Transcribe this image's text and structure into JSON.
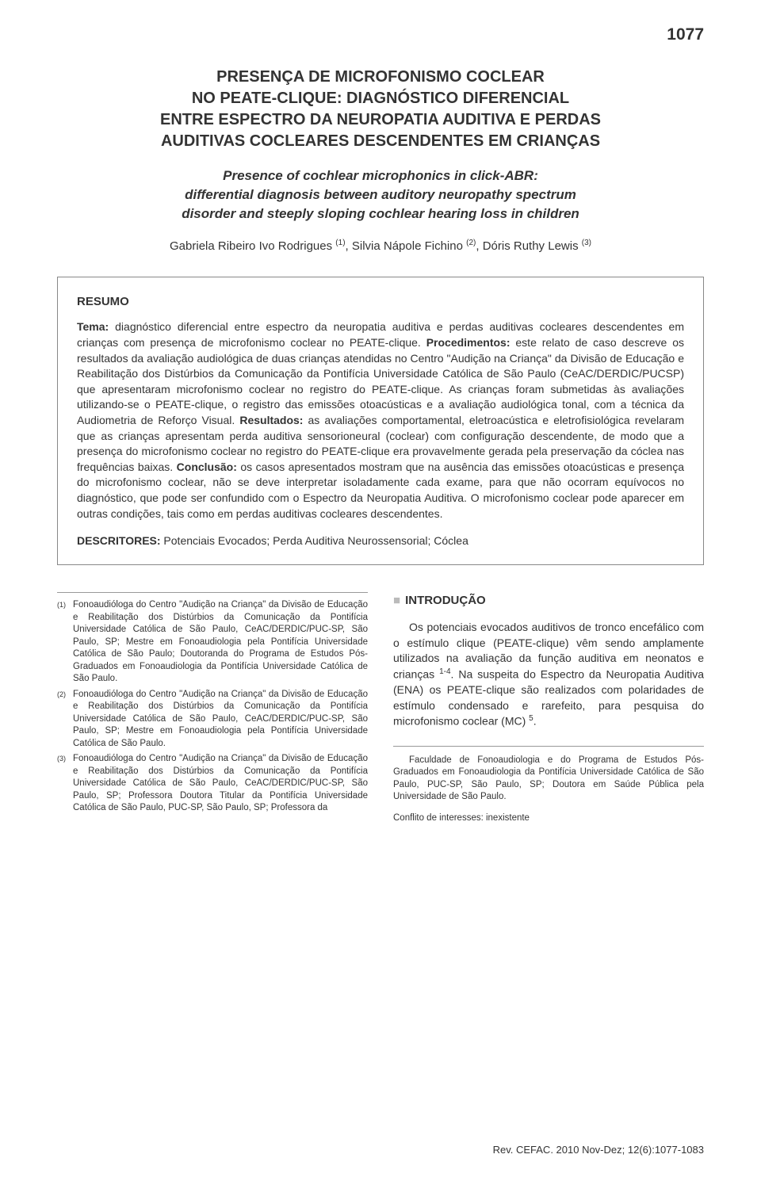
{
  "page_number": "1077",
  "title_pt": "PRESENÇA DE MICROFONISMO COCLEAR\nNO PEATE-CLIQUE: DIAGNÓSTICO DIFERENCIAL\nENTRE ESPECTRO DA NEUROPATIA AUDITIVA E PERDAS\nAUDITIVAS COCLEARES DESCENDENTES EM CRIANÇAS",
  "title_en": "Presence of cochlear microphonics in click-ABR:\ndifferential diagnosis between auditory neuropathy spectrum\ndisorder and steeply sloping cochlear hearing loss in children",
  "authors": [
    {
      "name": "Gabriela Ribeiro Ivo Rodrigues",
      "sup": "(1)"
    },
    {
      "name": "Silvia Nápole Fichino",
      "sup": "(2)"
    },
    {
      "name": "Dóris Ruthy Lewis",
      "sup": "(3)"
    }
  ],
  "abstract": {
    "heading": "RESUMO",
    "tema_label": "Tema:",
    "tema": " diagnóstico diferencial entre espectro da neuropatia auditiva e perdas auditivas cocleares descendentes em crianças com presença de microfonismo coclear no PEATE-clique. ",
    "procedimentos_label": "Procedimentos:",
    "procedimentos": " este relato de caso descreve os resultados da avaliação audiológica de duas crianças atendidas no Centro \"Audição na Criança\" da Divisão de Educação e Reabilitação dos Distúrbios da Comunicação da Pontifícia Universidade Católica de São Paulo (CeAC/DERDIC/PUCSP) que apresentaram microfonismo coclear no registro do PEATE-clique. As crianças foram submetidas às avaliações utilizando-se o PEATE-clique, o registro das emissões otoacústicas e a avaliação audiológica tonal, com a técnica da Audiometria de Reforço Visual. ",
    "resultados_label": "Resultados:",
    "resultados": " as avaliações comportamental, eletroacústica e eletrofisiológica revelaram que as crianças apresentam perda auditiva sensorioneural (coclear) com configuração descendente, de modo que a presença do microfonismo coclear no registro do PEATE-clique era provavelmente gerada pela preservação da cóclea nas frequências baixas. ",
    "conclusao_label": "Conclusão:",
    "conclusao": " os casos apresentados mostram que na ausência das emissões otoacústicas e presença do microfonismo coclear, não se deve interpretar isoladamente cada exame, para que não ocorram equívocos no diagnóstico, que pode ser confundido com o Espectro da Neuropatia Auditiva. O microfonismo coclear pode aparecer em outras condições, tais como em perdas auditivas cocleares descendentes.",
    "descritores_label": "DESCRITORES:",
    "descritores": " Potenciais Evocados; Perda Auditiva Neurossensorial; Cóclea"
  },
  "affiliations": [
    {
      "num": "(1)",
      "text": "Fonoaudióloga do Centro \"Audição na Criança\" da Divisão de Educação e Reabilitação dos Distúrbios da Comunicação da Pontifícia Universidade Católica de São Paulo, CeAC/DERDIC/PUC-SP, São Paulo, SP; Mestre em Fonoaudiologia pela Pontifícia Universidade Católica de São Paulo; Doutoranda do Programa de Estudos Pós-Graduados em Fonoaudiologia da Pontifícia Universidade Católica de São Paulo."
    },
    {
      "num": "(2)",
      "text": "Fonoaudióloga do Centro \"Audição na Criança\" da Divisão de Educação e Reabilitação dos Distúrbios da Comunicação da Pontifícia Universidade Católica de São Paulo, CeAC/DERDIC/PUC-SP, São Paulo, SP; Mestre em Fonoaudiologia pela Pontifícia Universidade Católica de São Paulo."
    },
    {
      "num": "(3)",
      "text": "Fonoaudióloga do Centro \"Audição na Criança\" da Divisão de Educação e Reabilitação dos Distúrbios da Comunicação da Pontifícia Universidade Católica de São Paulo, CeAC/DERDIC/PUC-SP, São Paulo, SP; Professora Doutora Titular da Pontifícia Universidade Católica de São Paulo, PUC-SP, São Paulo, SP; Professora da"
    }
  ],
  "intro": {
    "heading": "INTRODUÇÃO",
    "body_part1": "Os potenciais evocados auditivos de tronco encefálico com o estímulo clique (PEATE-clique) vêm sendo amplamente utilizados na avaliação da função auditiva em neonatos e crianças ",
    "sup1": "1-4",
    "body_part2": ". Na suspeita do Espectro da Neuropatia Auditiva (ENA) os PEATE-clique são realizados com polaridades de estímulo condensado e rarefeito, para pesquisa do microfonismo coclear (MC) ",
    "sup2": "5",
    "body_part3": "."
  },
  "faculty": "Faculdade de Fonoaudiologia e do Programa de Estudos Pós-Graduados em Fonoaudiologia da Pontifícia Universidade Católica de São Paulo, PUC-SP, São Paulo, SP; Doutora em Saúde Pública pela Universidade de São Paulo.",
  "conflict": "Conflito de interesses: inexistente",
  "footer": "Rev. CEFAC. 2010 Nov-Dez; 12(6):1077-1083"
}
